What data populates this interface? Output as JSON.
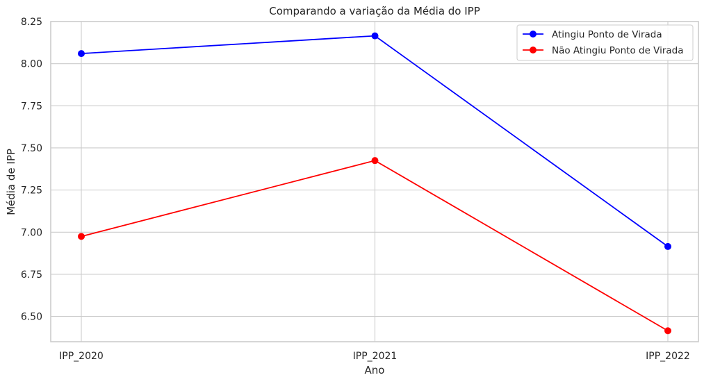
{
  "chart_data": {
    "type": "line",
    "title": "Comparando a variação da Média do IPP",
    "xlabel": "Ano",
    "ylabel": "Média de IPP",
    "categories": [
      "IPP_2020",
      "IPP_2021",
      "IPP_2022"
    ],
    "ylim": [
      6.35,
      8.25
    ],
    "yticks": [
      "6.50",
      "6.75",
      "7.00",
      "7.25",
      "7.50",
      "7.75",
      "8.00",
      "8.25"
    ],
    "grid": true,
    "legend_position": "top-right",
    "series": [
      {
        "name": "Atingiu Ponto de Virada",
        "color": "#0000ff",
        "values": [
          8.06,
          8.165,
          6.915
        ]
      },
      {
        "name": "Não Atingiu Ponto de Virada",
        "color": "#ff0000",
        "values": [
          6.975,
          7.425,
          6.415
        ]
      }
    ]
  }
}
